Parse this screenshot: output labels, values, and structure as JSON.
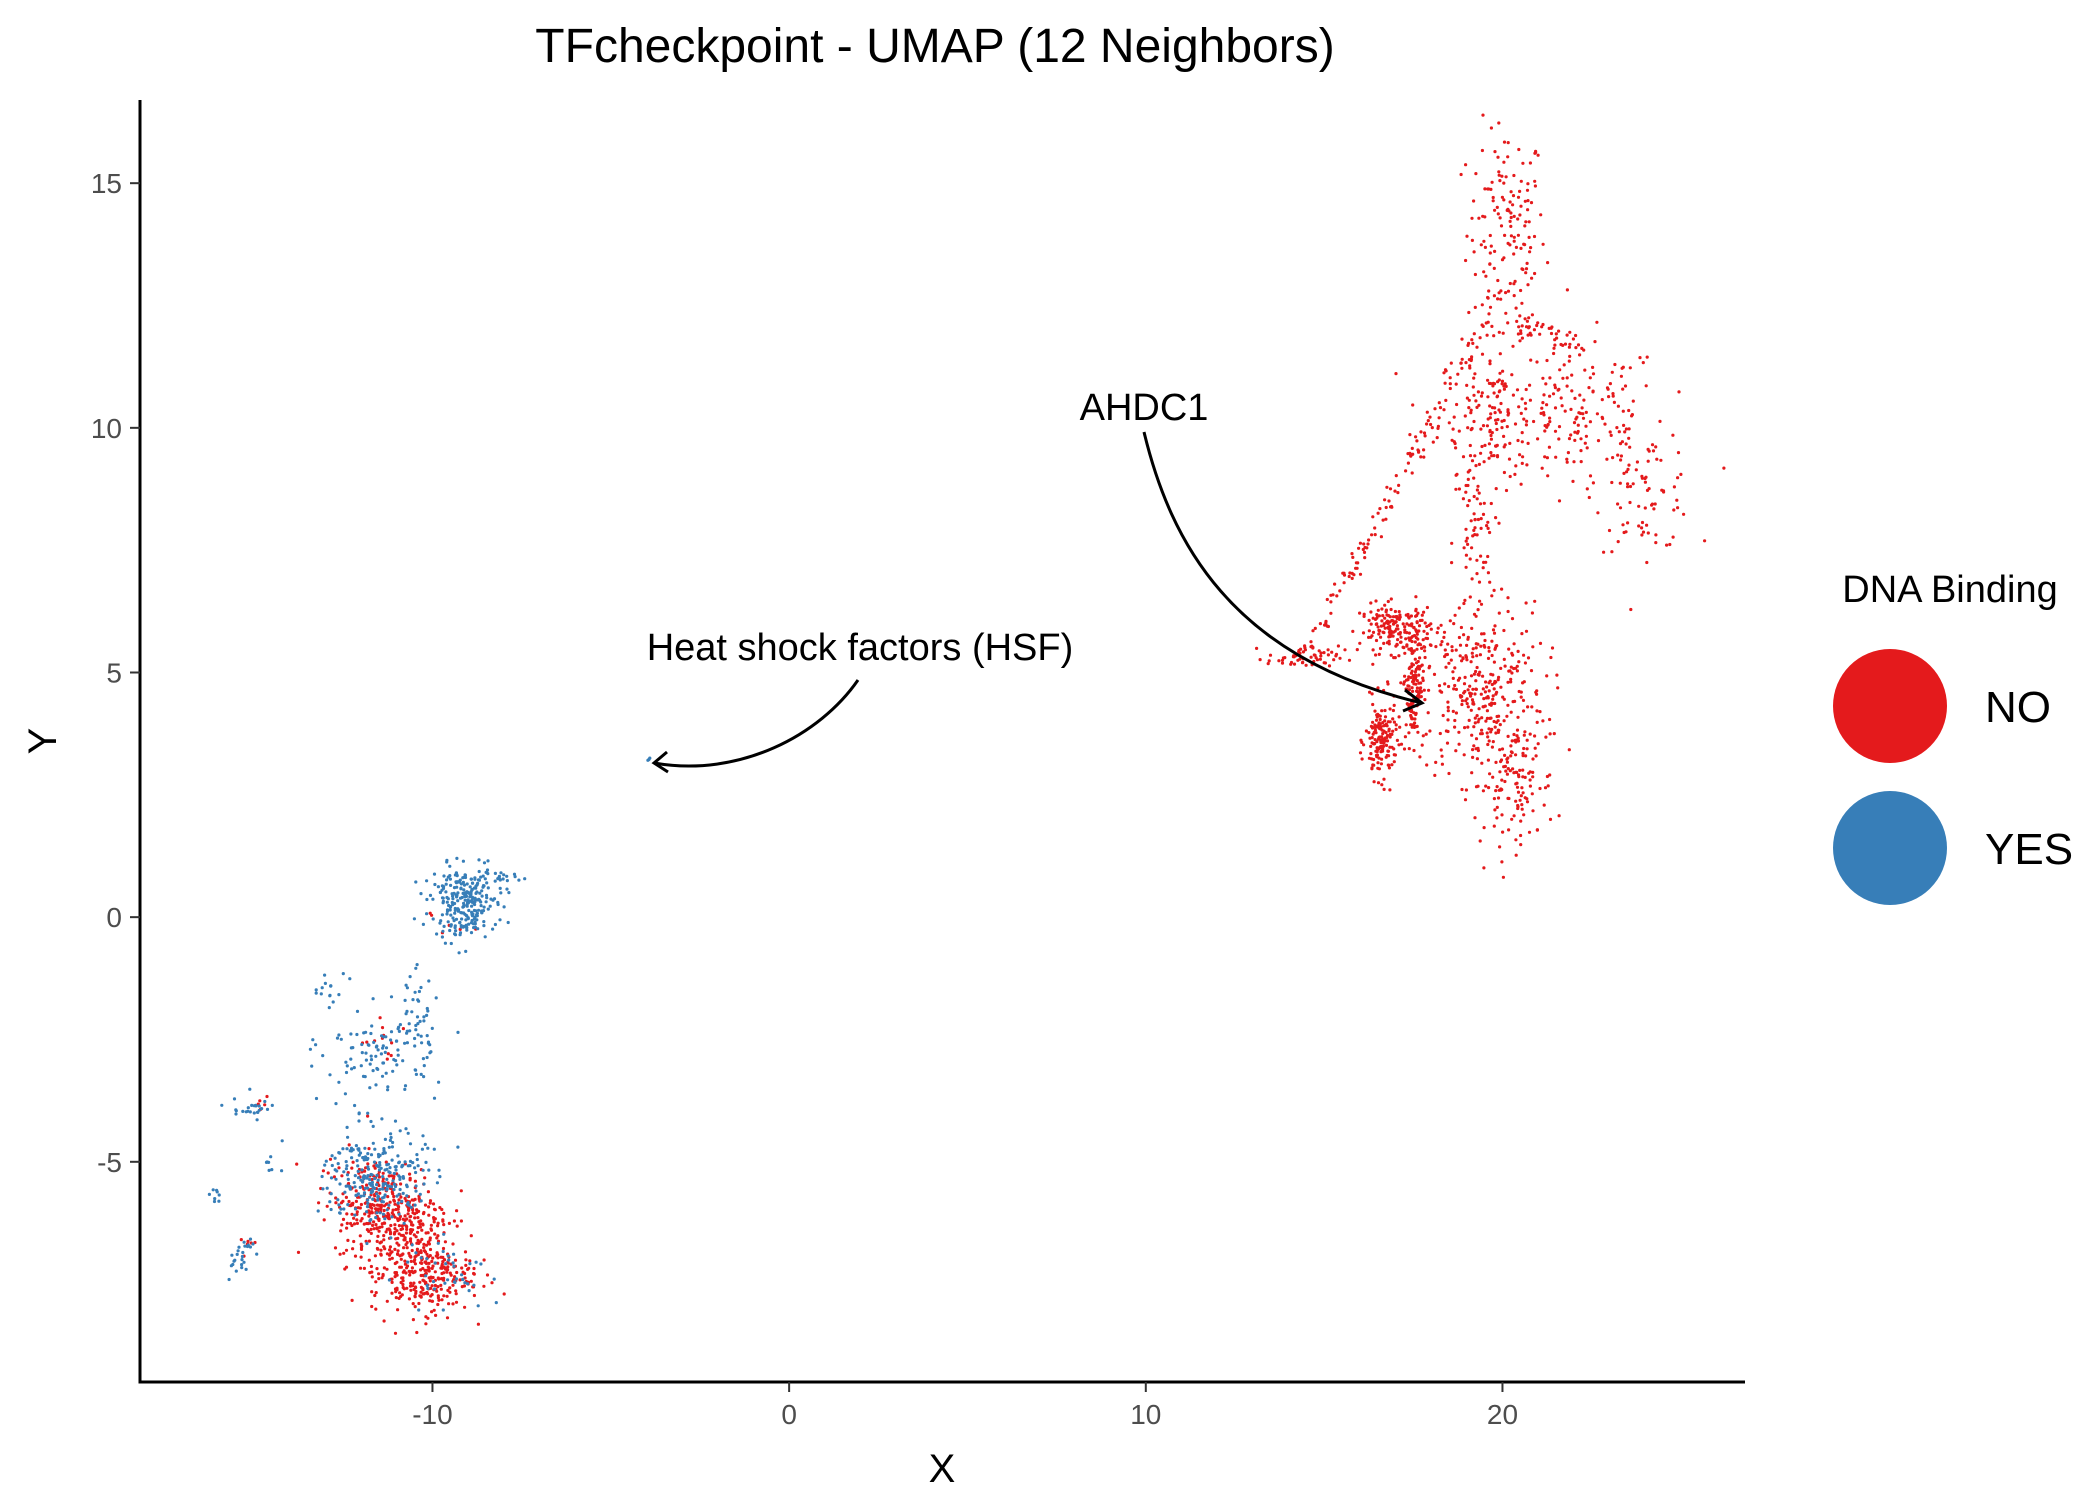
{
  "chart_data": {
    "type": "scatter",
    "title": "TFcheckpoint - UMAP (12 Neighbors)",
    "xlabel": "X",
    "ylabel": "Y",
    "xlim": [
      -18.2,
      26.8
    ],
    "ylim": [
      -9.5,
      16.7
    ],
    "x_ticks": [
      -10,
      0,
      10,
      20
    ],
    "y_ticks": [
      -5,
      0,
      5,
      10,
      15
    ],
    "x_tick_labels": [
      "-10",
      "0",
      "10",
      "20"
    ],
    "y_tick_labels": [
      "-5",
      "0",
      "5",
      "10",
      "15"
    ],
    "grid": false,
    "legend": {
      "title": "DNA Binding",
      "placement": "right",
      "entries": [
        {
          "label": "NO",
          "color": "#E41A1C"
        },
        {
          "label": "YES",
          "color": "#377EB8"
        }
      ]
    },
    "annotations": [
      {
        "text": "Heat shock factors (HSF)",
        "x": 2.1,
        "y": 5.5,
        "target": [
          -3.7,
          3.2
        ]
      },
      {
        "text": "AHDC1",
        "x": 10.0,
        "y": 10.5,
        "target": [
          18.0,
          4.4
        ]
      }
    ],
    "series": [
      {
        "name": "NO",
        "color": "#E41A1C",
        "clusters": [
          {
            "cx": 20.1,
            "cy": 14.0,
            "sx": 0.55,
            "sy": 1.1,
            "n": 150
          },
          {
            "cx": 19.8,
            "cy": 10.3,
            "sx": 0.8,
            "sy": 0.7,
            "n": 170
          },
          {
            "cx": 22.3,
            "cy": 10.2,
            "sx": 1.1,
            "sy": 0.8,
            "n": 140
          },
          {
            "cx": 24.0,
            "cy": 8.7,
            "sx": 0.7,
            "sy": 0.6,
            "n": 80
          },
          {
            "cx": 19.2,
            "cy": 7.6,
            "sx": 0.3,
            "sy": 1.0,
            "n": 70
          },
          {
            "cx": 19.4,
            "cy": 4.6,
            "sx": 0.9,
            "sy": 0.9,
            "n": 330
          },
          {
            "cx": 20.3,
            "cy": 2.7,
            "sx": 0.6,
            "sy": 0.6,
            "n": 120
          },
          {
            "cx": 17.0,
            "cy": 5.9,
            "sx": 0.5,
            "sy": 0.25,
            "n": 170
          },
          {
            "cx": 16.6,
            "cy": 3.6,
            "sx": 0.22,
            "sy": 0.4,
            "n": 160
          },
          {
            "cx": 17.5,
            "cy": 4.8,
            "sx": 0.15,
            "sy": 0.6,
            "n": 140
          },
          {
            "cx": 14.4,
            "cy": 5.3,
            "sx": 0.5,
            "sy": 0.12,
            "n": 60
          },
          {
            "cx": -11.1,
            "cy": -6.1,
            "sx": 0.8,
            "sy": 0.5,
            "n": 350
          },
          {
            "cx": -10.3,
            "cy": -7.3,
            "sx": 0.7,
            "sy": 0.4,
            "n": 300
          },
          {
            "cx": -12.0,
            "cy": -5.5,
            "sx": 0.5,
            "sy": 0.4,
            "n": 60
          },
          {
            "cx": -15.2,
            "cy": -6.8,
            "sx": 0.15,
            "sy": 0.12,
            "n": 6
          },
          {
            "cx": -14.8,
            "cy": -3.9,
            "sx": 0.15,
            "sy": 0.12,
            "n": 5
          },
          {
            "cx": -11.3,
            "cy": -2.6,
            "sx": 0.4,
            "sy": 0.3,
            "n": 12
          },
          {
            "cx": -9.5,
            "cy": 0.0,
            "sx": 0.3,
            "sy": 0.3,
            "n": 6
          }
        ],
        "paths": [
          {
            "x0": 14.6,
            "y0": 5.6,
            "x1": 19.6,
            "y1": 12.2,
            "n": 130
          },
          {
            "x0": 20.3,
            "y0": 12.2,
            "x1": 22.5,
            "y1": 11.6,
            "n": 40
          }
        ]
      },
      {
        "name": "YES",
        "color": "#377EB8",
        "clusters": [
          {
            "cx": -9.1,
            "cy": 0.3,
            "sx": 0.45,
            "sy": 0.35,
            "n": 260
          },
          {
            "cx": -8.2,
            "cy": 0.8,
            "sx": 0.3,
            "sy": 0.15,
            "n": 25
          },
          {
            "cx": -11.6,
            "cy": -5.3,
            "sx": 0.7,
            "sy": 0.5,
            "n": 260
          },
          {
            "cx": -11.5,
            "cy": -2.8,
            "sx": 0.8,
            "sy": 0.5,
            "n": 100
          },
          {
            "cx": -10.5,
            "cy": -2.1,
            "sx": 0.3,
            "sy": 0.5,
            "n": 40
          },
          {
            "cx": -15.0,
            "cy": -3.9,
            "sx": 0.3,
            "sy": 0.15,
            "n": 25
          },
          {
            "cx": -15.4,
            "cy": -7.0,
            "sx": 0.2,
            "sy": 0.25,
            "n": 25
          },
          {
            "cx": -16.1,
            "cy": -5.7,
            "sx": 0.1,
            "sy": 0.1,
            "n": 8
          },
          {
            "cx": -14.5,
            "cy": -5.0,
            "sx": 0.15,
            "sy": 0.1,
            "n": 8
          },
          {
            "cx": -12.8,
            "cy": -1.4,
            "sx": 0.4,
            "sy": 0.2,
            "n": 15
          },
          {
            "cx": -9.6,
            "cy": -7.2,
            "sx": 0.6,
            "sy": 0.3,
            "n": 40
          },
          {
            "cx": -3.9,
            "cy": 3.2,
            "sx": 0.05,
            "sy": 0.05,
            "n": 3
          }
        ],
        "paths": []
      }
    ]
  }
}
